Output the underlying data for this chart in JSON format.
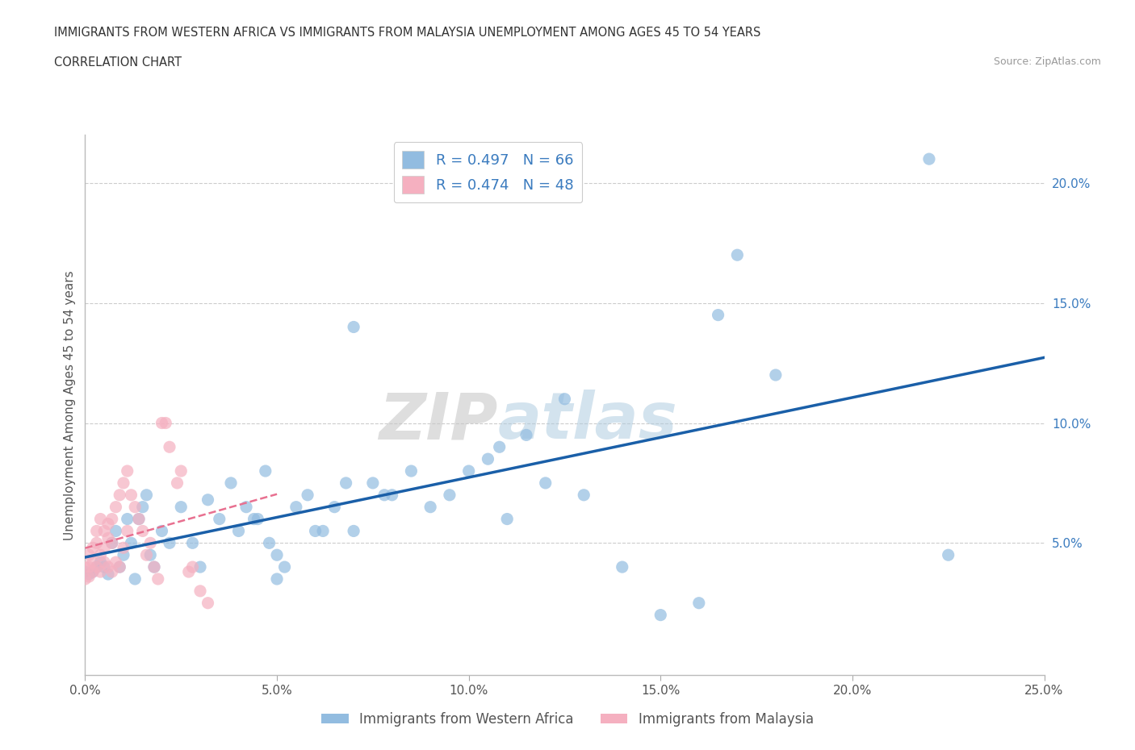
{
  "title_line1": "IMMIGRANTS FROM WESTERN AFRICA VS IMMIGRANTS FROM MALAYSIA UNEMPLOYMENT AMONG AGES 45 TO 54 YEARS",
  "title_line2": "CORRELATION CHART",
  "source_text": "Source: ZipAtlas.com",
  "ylabel": "Unemployment Among Ages 45 to 54 years",
  "xlim": [
    0.0,
    0.25
  ],
  "ylim": [
    -0.005,
    0.22
  ],
  "xticks": [
    0.0,
    0.05,
    0.1,
    0.15,
    0.2,
    0.25
  ],
  "yticks_right": [
    0.05,
    0.1,
    0.15,
    0.2
  ],
  "ytick_labels_right": [
    "5.0%",
    "10.0%",
    "15.0%",
    "20.0%"
  ],
  "xtick_labels": [
    "0.0%",
    "5.0%",
    "10.0%",
    "15.0%",
    "20.0%",
    "25.0%"
  ],
  "color_blue": "#92bce0",
  "color_pink": "#f5b0c0",
  "color_blue_text": "#3a7bbf",
  "trend_blue": "#1a5fa8",
  "trend_pink": "#e87090",
  "watermark": "ZIPatlas",
  "R_blue": 0.497,
  "N_blue": 66,
  "R_pink": 0.474,
  "N_pink": 48,
  "legend_label_blue": "Immigrants from Western Africa",
  "legend_label_pink": "Immigrants from Malaysia",
  "wa_x": [
    0.0,
    0.001,
    0.002,
    0.003,
    0.004,
    0.005,
    0.006,
    0.007,
    0.008,
    0.009,
    0.01,
    0.011,
    0.012,
    0.013,
    0.014,
    0.015,
    0.016,
    0.017,
    0.018,
    0.02,
    0.022,
    0.025,
    0.028,
    0.03,
    0.032,
    0.035,
    0.038,
    0.04,
    0.042,
    0.044,
    0.045,
    0.047,
    0.048,
    0.05,
    0.052,
    0.055,
    0.058,
    0.06,
    0.062,
    0.065,
    0.068,
    0.07,
    0.075,
    0.078,
    0.08,
    0.085,
    0.09,
    0.095,
    0.1,
    0.105,
    0.108,
    0.11,
    0.115,
    0.12,
    0.125,
    0.13,
    0.14,
    0.15,
    0.16,
    0.165,
    0.17,
    0.18,
    0.22,
    0.225,
    0.07,
    0.05
  ],
  "wa_y": [
    0.038,
    0.037,
    0.038,
    0.04,
    0.042,
    0.04,
    0.037,
    0.05,
    0.055,
    0.04,
    0.045,
    0.06,
    0.05,
    0.035,
    0.06,
    0.065,
    0.07,
    0.045,
    0.04,
    0.055,
    0.05,
    0.065,
    0.05,
    0.04,
    0.068,
    0.06,
    0.075,
    0.055,
    0.065,
    0.06,
    0.06,
    0.08,
    0.05,
    0.045,
    0.04,
    0.065,
    0.07,
    0.055,
    0.055,
    0.065,
    0.075,
    0.055,
    0.075,
    0.07,
    0.07,
    0.08,
    0.065,
    0.07,
    0.08,
    0.085,
    0.09,
    0.06,
    0.095,
    0.075,
    0.11,
    0.07,
    0.04,
    0.02,
    0.025,
    0.145,
    0.17,
    0.12,
    0.21,
    0.045,
    0.14,
    0.035
  ],
  "my_x": [
    0.0,
    0.0,
    0.001,
    0.001,
    0.001,
    0.002,
    0.002,
    0.002,
    0.003,
    0.003,
    0.003,
    0.004,
    0.004,
    0.004,
    0.005,
    0.005,
    0.005,
    0.006,
    0.006,
    0.006,
    0.007,
    0.007,
    0.007,
    0.008,
    0.008,
    0.009,
    0.009,
    0.01,
    0.01,
    0.011,
    0.011,
    0.012,
    0.013,
    0.014,
    0.015,
    0.016,
    0.017,
    0.018,
    0.019,
    0.02,
    0.021,
    0.022,
    0.024,
    0.025,
    0.027,
    0.028,
    0.03,
    0.032
  ],
  "my_y": [
    0.035,
    0.04,
    0.036,
    0.04,
    0.045,
    0.038,
    0.042,
    0.048,
    0.04,
    0.05,
    0.055,
    0.038,
    0.045,
    0.06,
    0.042,
    0.048,
    0.055,
    0.04,
    0.052,
    0.058,
    0.038,
    0.05,
    0.06,
    0.042,
    0.065,
    0.04,
    0.07,
    0.048,
    0.075,
    0.055,
    0.08,
    0.07,
    0.065,
    0.06,
    0.055,
    0.045,
    0.05,
    0.04,
    0.035,
    0.1,
    0.1,
    0.09,
    0.075,
    0.08,
    0.038,
    0.04,
    0.03,
    0.025
  ]
}
